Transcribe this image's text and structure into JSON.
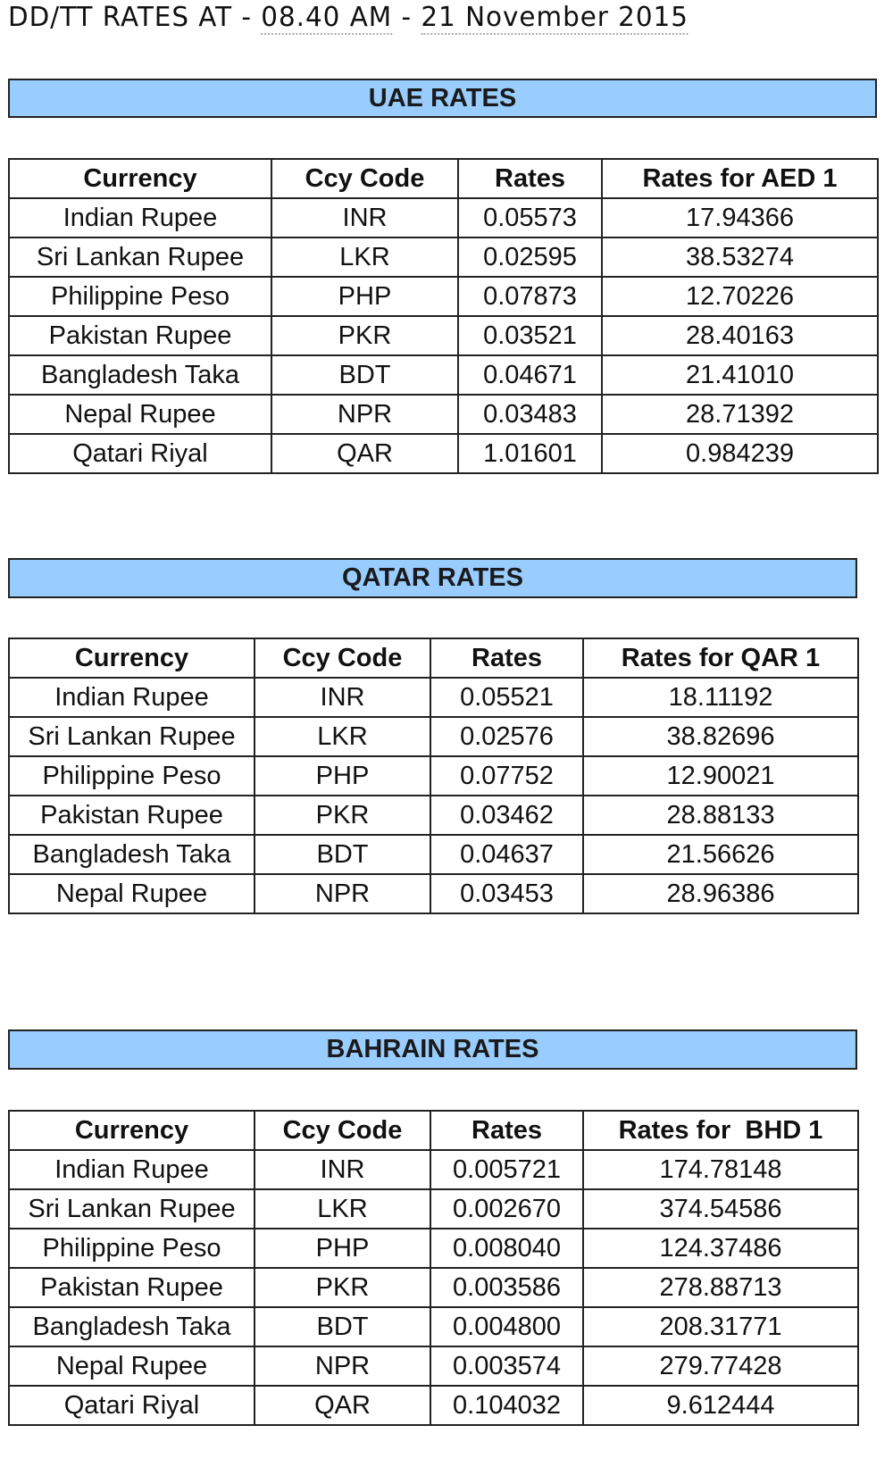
{
  "title": {
    "prefix": "DD/TT RATES AT - ",
    "time": "08.40 AM",
    "sep": " - ",
    "date": "21 November 2015"
  },
  "sections": [
    {
      "heading": "UAE RATES",
      "columns": [
        "Currency",
        "Ccy Code",
        "Rates",
        "Rates for AED 1"
      ],
      "rows": [
        [
          "Indian Rupee",
          "INR",
          "0.05573",
          "17.94366"
        ],
        [
          "Sri Lankan Rupee",
          "LKR",
          "0.02595",
          "38.53274"
        ],
        [
          "Philippine Peso",
          "PHP",
          "0.07873",
          "12.70226"
        ],
        [
          "Pakistan Rupee",
          "PKR",
          "0.03521",
          "28.40163"
        ],
        [
          "Bangladesh Taka",
          "BDT",
          "0.04671",
          "21.41010"
        ],
        [
          "Nepal Rupee",
          "NPR",
          "0.03483",
          "28.71392"
        ],
        [
          "Qatari Riyal",
          "QAR",
          "1.01601",
          "0.984239"
        ]
      ]
    },
    {
      "heading": "QATAR RATES",
      "columns": [
        "Currency",
        "Ccy Code",
        "Rates",
        "Rates for QAR 1"
      ],
      "rows": [
        [
          "Indian Rupee",
          "INR",
          "0.05521",
          "18.11192"
        ],
        [
          "Sri Lankan Rupee",
          "LKR",
          "0.02576",
          "38.82696"
        ],
        [
          "Philippine Peso",
          "PHP",
          "0.07752",
          "12.90021"
        ],
        [
          "Pakistan Rupee",
          "PKR",
          "0.03462",
          "28.88133"
        ],
        [
          "Bangladesh Taka",
          "BDT",
          "0.04637",
          "21.56626"
        ],
        [
          "Nepal Rupee",
          "NPR",
          "0.03453",
          "28.96386"
        ]
      ]
    },
    {
      "heading": "BAHRAIN RATES",
      "columns": [
        "Currency",
        "Ccy Code",
        "Rates",
        "Rates for  BHD 1"
      ],
      "rows": [
        [
          "Indian Rupee",
          "INR",
          "0.005721",
          "174.78148"
        ],
        [
          "Sri Lankan Rupee",
          "LKR",
          "0.002670",
          "374.54586"
        ],
        [
          "Philippine Peso",
          "PHP",
          "0.008040",
          "124.37486"
        ],
        [
          "Pakistan Rupee",
          "PKR",
          "0.003586",
          "278.88713"
        ],
        [
          "Bangladesh Taka",
          "BDT",
          "0.004800",
          "208.31771"
        ],
        [
          "Nepal Rupee",
          "NPR",
          "0.003574",
          "279.77428"
        ],
        [
          "Qatari Riyal",
          "QAR",
          "0.104032",
          "9.612444"
        ]
      ]
    }
  ],
  "colors": {
    "heading_bg": "#99ccff",
    "border": "#222222"
  }
}
